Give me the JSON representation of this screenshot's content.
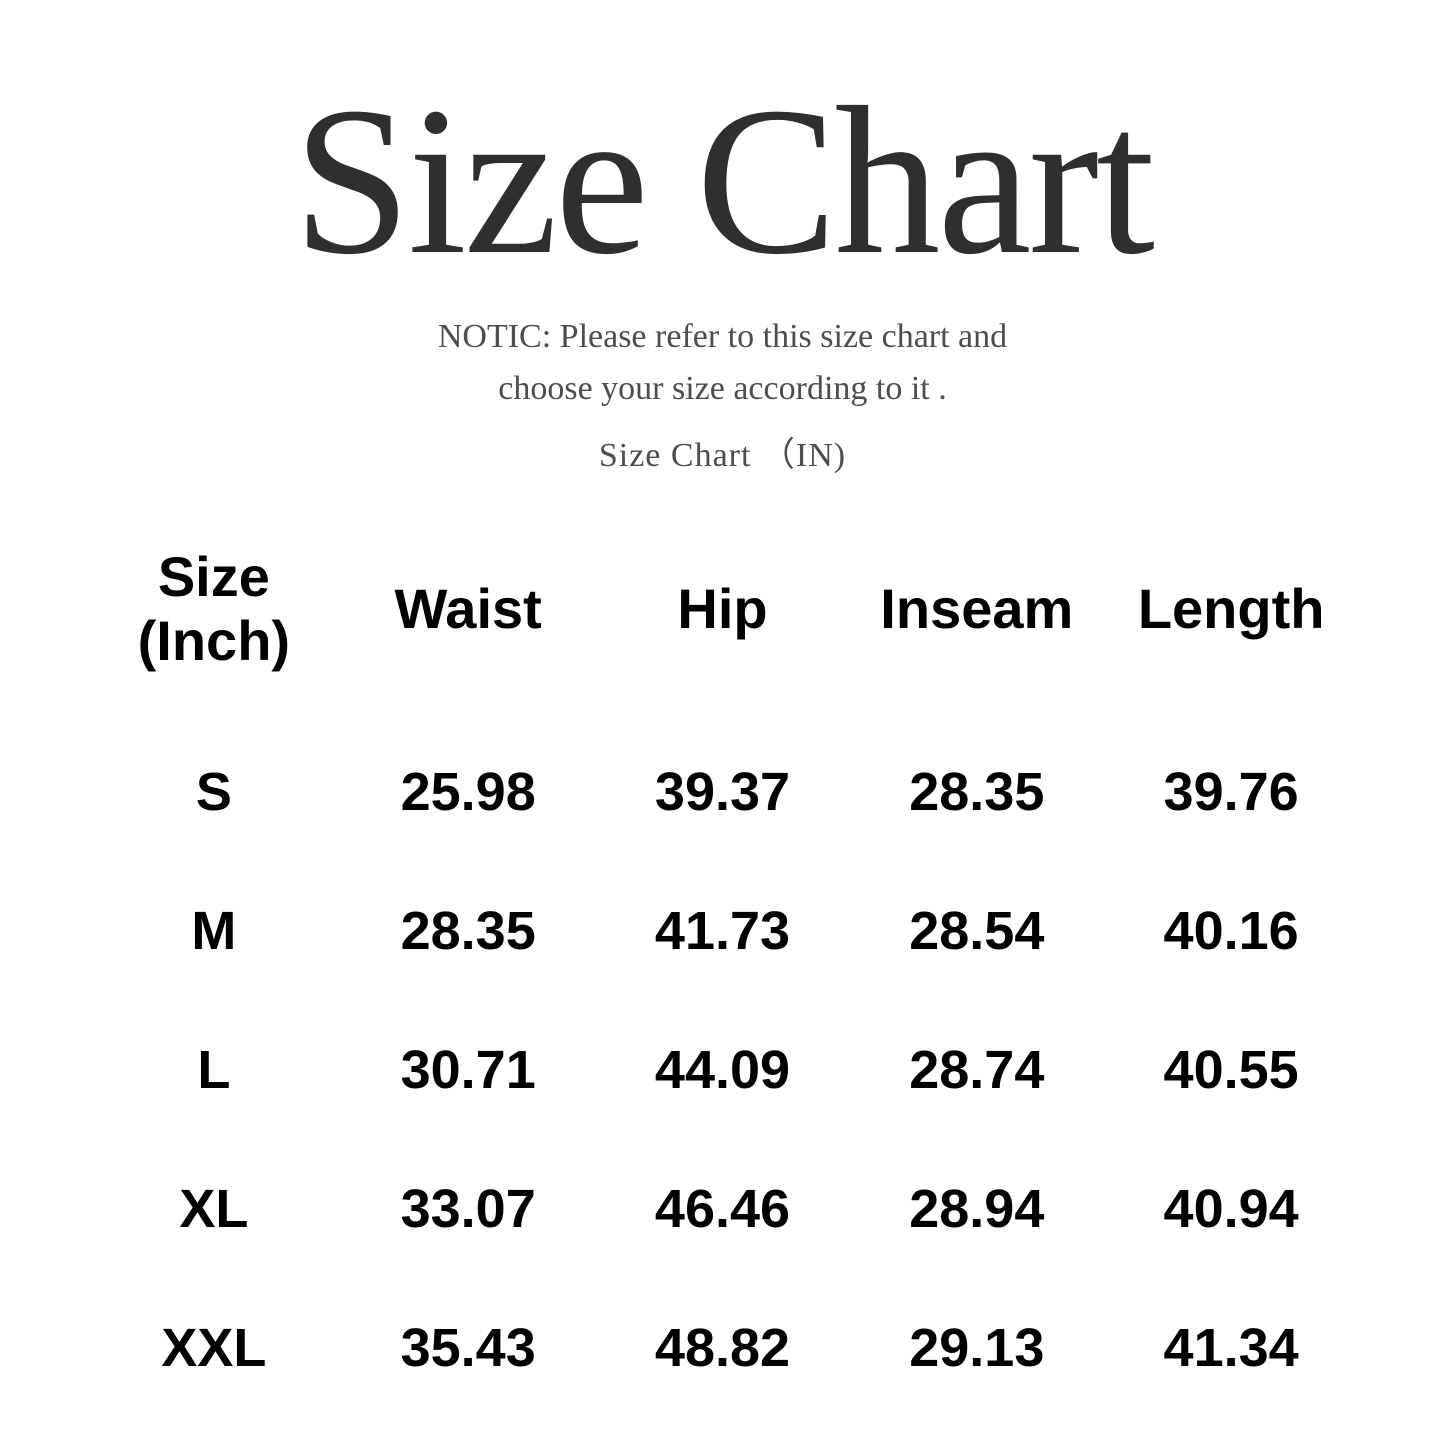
{
  "title": "Size Chart",
  "notice": {
    "line1": "NOTIC: Please refer to this size chart and",
    "line2": "choose your size according to it .",
    "subtitle": "Size Chart （IN)"
  },
  "table": {
    "unit": "Inch",
    "header": {
      "size_col_line1": "Size",
      "size_col_line2": "(Inch)",
      "columns": [
        "Waist",
        "Hip",
        "Inseam",
        "Length"
      ]
    },
    "rows": [
      {
        "size": "S",
        "waist": "25.98",
        "hip": "39.37",
        "inseam": "28.35",
        "length": "39.76"
      },
      {
        "size": "M",
        "waist": "28.35",
        "hip": "41.73",
        "inseam": "28.54",
        "length": "40.16"
      },
      {
        "size": "L",
        "waist": "30.71",
        "hip": "44.09",
        "inseam": "28.74",
        "length": "40.55"
      },
      {
        "size": "XL",
        "waist": "33.07",
        "hip": "46.46",
        "inseam": "28.94",
        "length": "40.94"
      },
      {
        "size": "XXL",
        "waist": "35.43",
        "hip": "48.82",
        "inseam": "29.13",
        "length": "41.34"
      }
    ]
  },
  "colors": {
    "background": "#ffffff",
    "title_text": "#2f2f2f",
    "notice_text": "#4d4d4d",
    "table_text": "#000000"
  }
}
